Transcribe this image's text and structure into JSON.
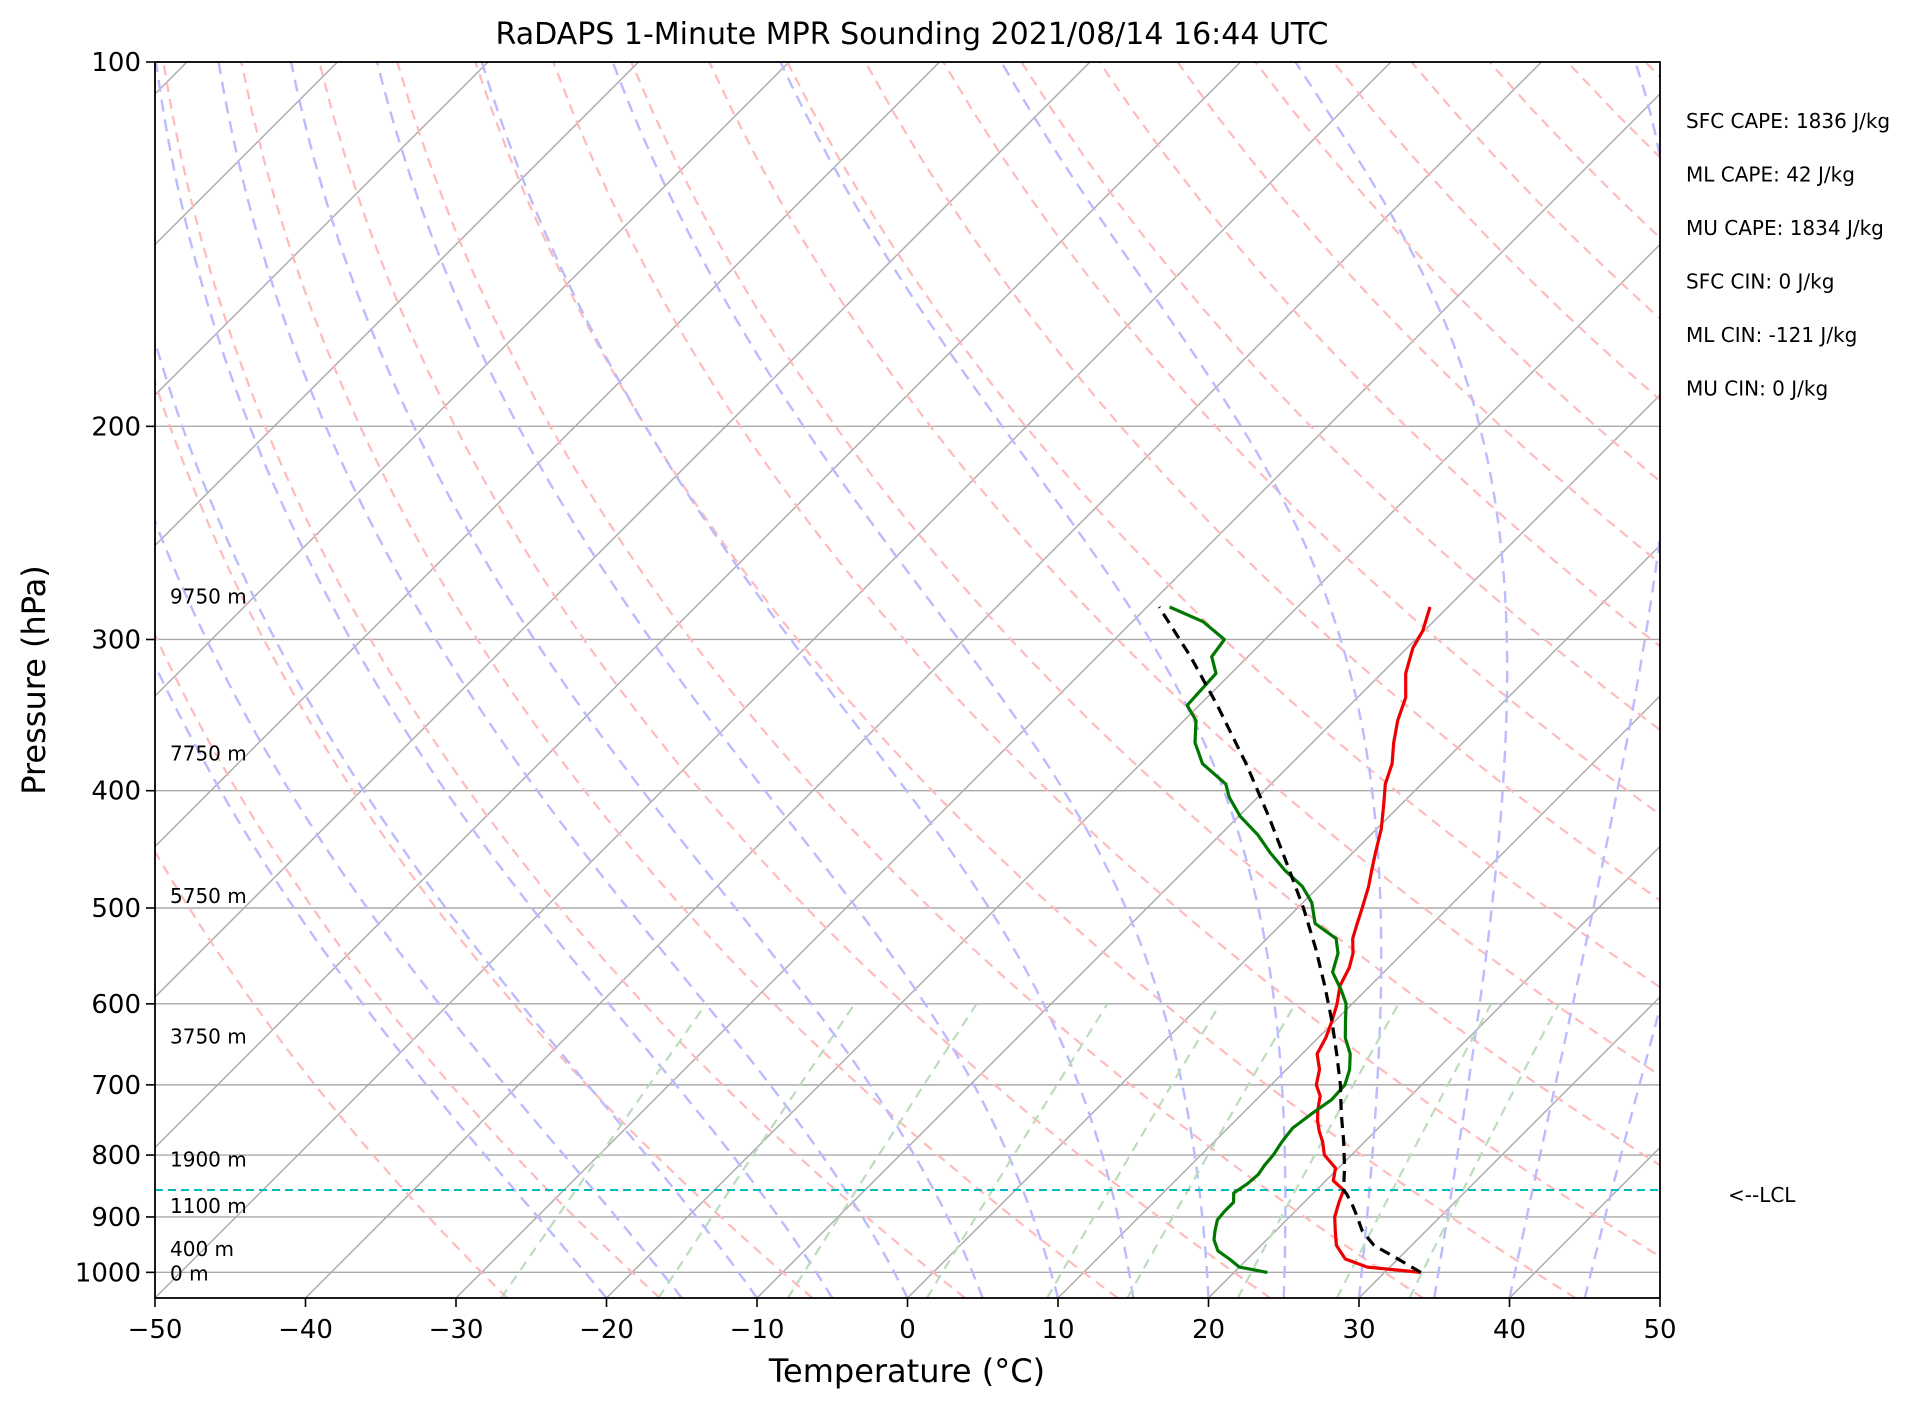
{
  "chart_data": {
    "type": "line",
    "title": "RaDAPS 1-Minute MPR Sounding 2021/08/14 16:44 UTC",
    "xlabel": "Temperature (°C)",
    "ylabel": "Pressure (hPa)",
    "xlim": [
      -50,
      50
    ],
    "ylim": [
      1050,
      100
    ],
    "y_scale": "log",
    "skew": true,
    "grid": true,
    "x_ticks": [
      "−50",
      "−40",
      "−30",
      "−20",
      "−10",
      "0",
      "10",
      "20",
      "30",
      "40",
      "50"
    ],
    "x_tick_values": [
      -50,
      -40,
      -30,
      -20,
      -10,
      0,
      10,
      20,
      30,
      40,
      50
    ],
    "y_ticks": [
      "100",
      "200",
      "300",
      "400",
      "500",
      "600",
      "700",
      "800",
      "900",
      "1000"
    ],
    "y_tick_values": [
      100,
      200,
      300,
      400,
      500,
      600,
      700,
      800,
      900,
      1000
    ],
    "height_labels": [
      {
        "p": 1000,
        "text": "0 m"
      },
      {
        "p": 955,
        "text": "400 m"
      },
      {
        "p": 880,
        "text": "1100 m"
      },
      {
        "p": 805,
        "text": "1900 m"
      },
      {
        "p": 637,
        "text": "3750 m"
      },
      {
        "p": 488,
        "text": "5750 m"
      },
      {
        "p": 372,
        "text": "7750 m"
      },
      {
        "p": 276,
        "text": "9750 m"
      }
    ],
    "lcl": {
      "p": 855,
      "label": "<--LCL"
    },
    "stats": [
      "SFC CAPE: 1836 J/kg",
      "ML CAPE: 42 J/kg",
      "MU CAPE: 1834 J/kg",
      "SFC CIN: 0 J/kg",
      "ML CIN: -121 J/kg",
      "MU CIN: 0 J/kg"
    ],
    "series": [
      {
        "color": "#ee0000",
        "points": [
          [
            1000,
            32.4
          ],
          [
            990,
            28.5
          ],
          [
            975,
            26.5
          ],
          [
            950,
            25.0
          ],
          [
            925,
            24.0
          ],
          [
            900,
            23.0
          ],
          [
            875,
            22.3
          ],
          [
            855,
            21.8
          ],
          [
            840,
            20.5
          ],
          [
            820,
            19.8
          ],
          [
            800,
            18.2
          ],
          [
            780,
            17.2
          ],
          [
            765,
            16.3
          ],
          [
            750,
            15.5
          ],
          [
            735,
            14.8
          ],
          [
            715,
            14.0
          ],
          [
            700,
            13.0
          ],
          [
            680,
            12.2
          ],
          [
            660,
            11.0
          ],
          [
            640,
            10.5
          ],
          [
            620,
            9.8
          ],
          [
            600,
            9.0
          ],
          [
            580,
            8.0
          ],
          [
            560,
            7.4
          ],
          [
            545,
            6.7
          ],
          [
            530,
            5.7
          ],
          [
            515,
            5.0
          ],
          [
            500,
            4.3
          ],
          [
            480,
            3.3
          ],
          [
            465,
            2.4
          ],
          [
            450,
            1.5
          ],
          [
            430,
            0.3
          ],
          [
            410,
            -1.2
          ],
          [
            395,
            -2.4
          ],
          [
            380,
            -3.3
          ],
          [
            365,
            -4.6
          ],
          [
            350,
            -5.8
          ],
          [
            335,
            -6.8
          ],
          [
            320,
            -8.4
          ],
          [
            305,
            -9.6
          ],
          [
            295,
            -10.1
          ],
          [
            282,
            -11.2
          ]
        ]
      },
      {
        "color": "#007700",
        "points": [
          [
            1000,
            22.2
          ],
          [
            990,
            20.0
          ],
          [
            975,
            18.8
          ],
          [
            960,
            17.5
          ],
          [
            940,
            16.5
          ],
          [
            925,
            16.0
          ],
          [
            905,
            15.4
          ],
          [
            890,
            15.3
          ],
          [
            875,
            15.3
          ],
          [
            860,
            14.7
          ],
          [
            845,
            15.0
          ],
          [
            830,
            15.1
          ],
          [
            815,
            14.9
          ],
          [
            800,
            14.8
          ],
          [
            780,
            14.5
          ],
          [
            760,
            14.3
          ],
          [
            740,
            14.6
          ],
          [
            720,
            15.0
          ],
          [
            700,
            14.9
          ],
          [
            680,
            14.2
          ],
          [
            660,
            13.2
          ],
          [
            640,
            11.8
          ],
          [
            620,
            10.7
          ],
          [
            600,
            9.6
          ],
          [
            585,
            8.4
          ],
          [
            565,
            6.6
          ],
          [
            545,
            5.7
          ],
          [
            530,
            4.6
          ],
          [
            515,
            2.2
          ],
          [
            495,
            0.6
          ],
          [
            480,
            -1.1
          ],
          [
            465,
            -3.4
          ],
          [
            450,
            -5.5
          ],
          [
            435,
            -7.5
          ],
          [
            420,
            -9.9
          ],
          [
            405,
            -11.9
          ],
          [
            395,
            -13.0
          ],
          [
            380,
            -15.9
          ],
          [
            365,
            -17.8
          ],
          [
            350,
            -19.2
          ],
          [
            340,
            -20.8
          ],
          [
            330,
            -20.9
          ],
          [
            320,
            -21.0
          ],
          [
            310,
            -22.4
          ],
          [
            300,
            -22.7
          ],
          [
            290,
            -25.3
          ],
          [
            282,
            -28.5
          ]
        ]
      },
      {
        "color": "#000000",
        "dashed": true,
        "points": [
          [
            1000,
            32.4
          ],
          [
            975,
            30.0
          ],
          [
            950,
            27.5
          ],
          [
            925,
            25.8
          ],
          [
            900,
            24.5
          ],
          [
            880,
            23.4
          ],
          [
            862,
            22.3
          ],
          [
            855,
            21.8
          ],
          [
            820,
            20.4
          ],
          [
            780,
            18.6
          ],
          [
            740,
            16.6
          ],
          [
            700,
            14.6
          ],
          [
            660,
            12.3
          ],
          [
            620,
            9.8
          ],
          [
            580,
            7.0
          ],
          [
            540,
            3.9
          ],
          [
            500,
            0.4
          ],
          [
            460,
            -3.6
          ],
          [
            420,
            -8.0
          ],
          [
            380,
            -13.0
          ],
          [
            340,
            -18.8
          ],
          [
            310,
            -23.8
          ],
          [
            282,
            -29.2
          ]
        ]
      }
    ],
    "background": {
      "isotherm_color": "#aaaaaa",
      "dry_adiabat_color": "#ffbbbb",
      "moist_adiabat_color": "#bbbbff",
      "mixing_ratio_color": "#bbddbb",
      "lcl_color": "#00bbbb"
    }
  }
}
